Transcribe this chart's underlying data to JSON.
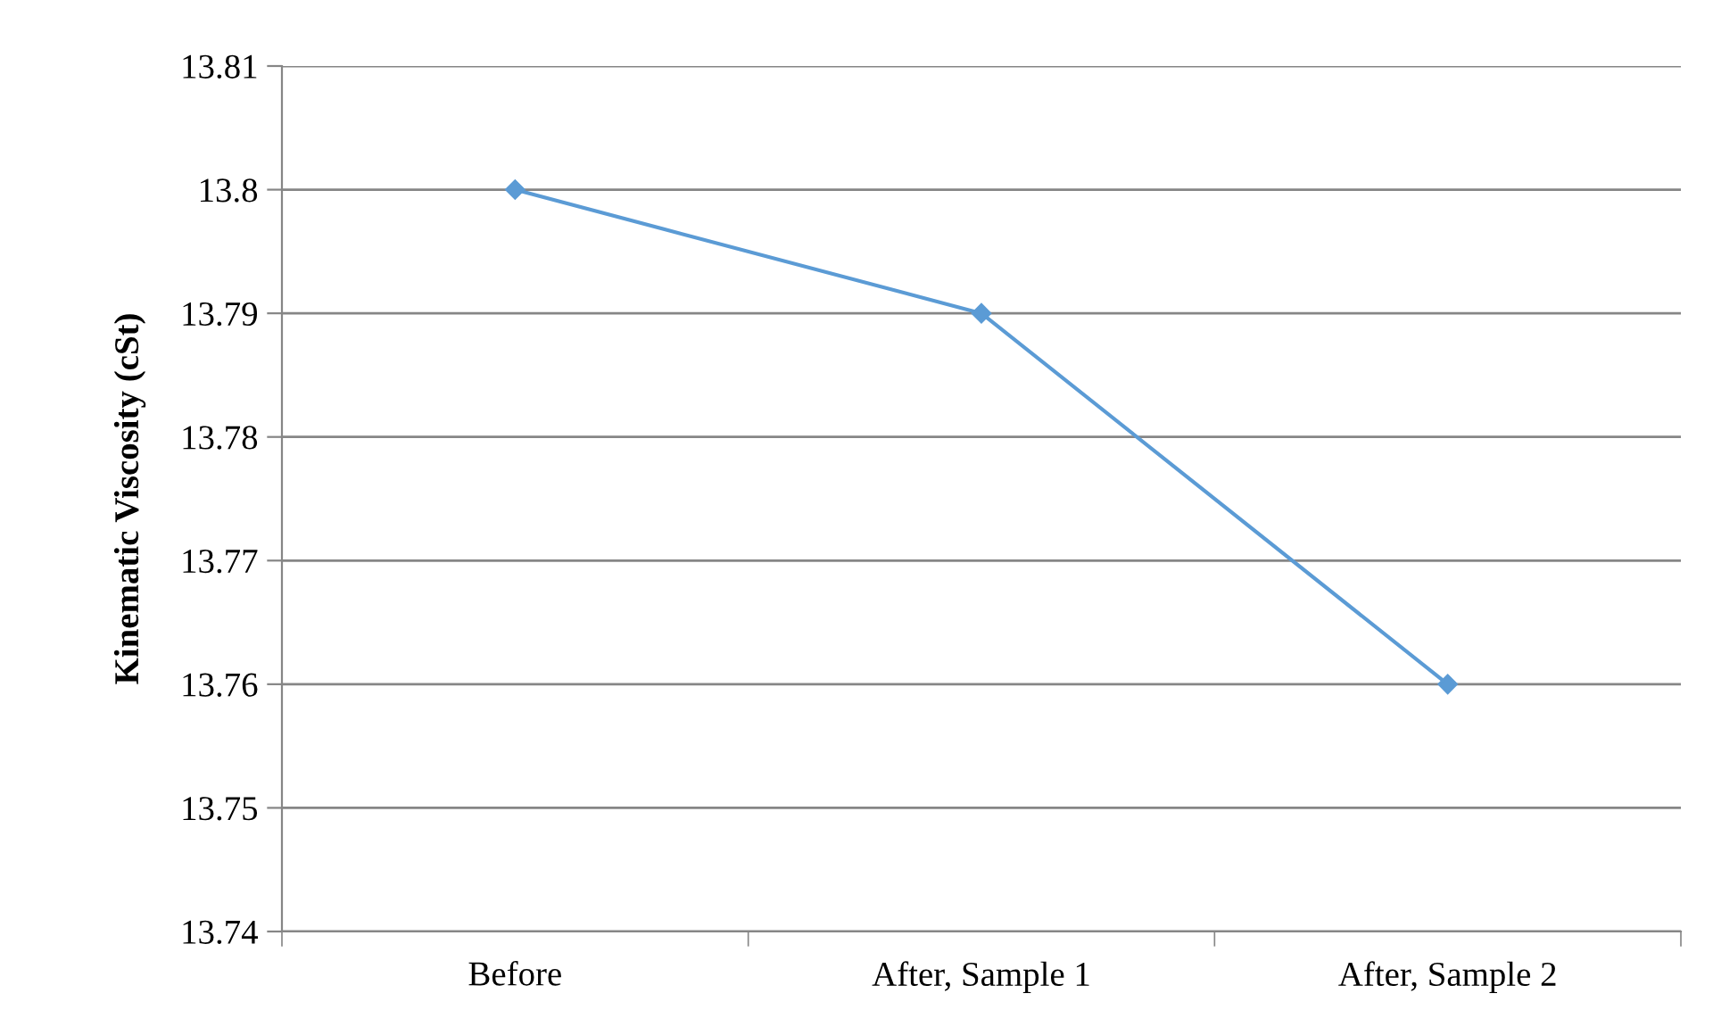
{
  "chart_data": {
    "type": "line",
    "ylabel": "Kinematic Viscosity (cSt)",
    "categories": [
      "Before",
      "After, Sample 1",
      "After, Sample 2"
    ],
    "series": [
      {
        "color": "#5b9bd5",
        "values": [
          13.8,
          13.79,
          13.76
        ]
      }
    ],
    "ylim": [
      13.74,
      13.81
    ],
    "yticks": [
      13.74,
      13.75,
      13.76,
      13.77,
      13.78,
      13.79,
      13.8,
      13.81
    ],
    "grid": "y",
    "marker": "diamond",
    "line_style": "solid"
  }
}
